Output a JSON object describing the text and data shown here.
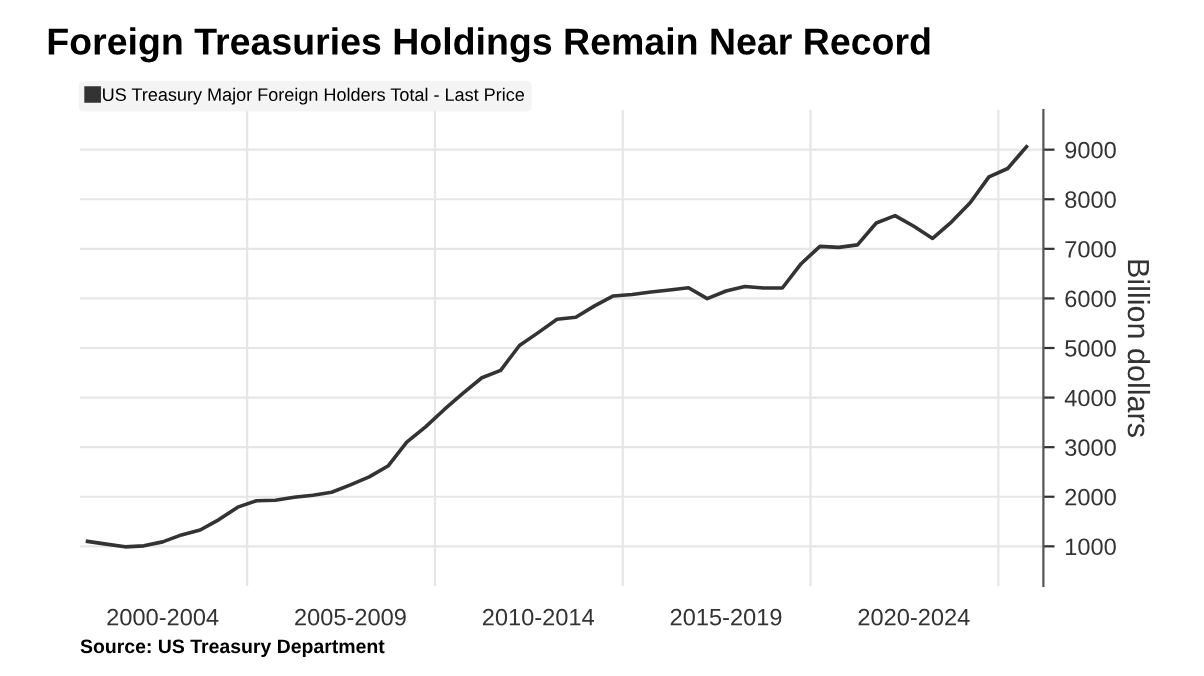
{
  "chart_data": {
    "type": "line",
    "title": "Foreign Treasuries Holdings Remain Near Record",
    "ylabel": "Billion dollars",
    "annotations": [
      "Source: US Treasury Department"
    ],
    "categories": [
      null,
      null,
      null,
      null,
      "2000-2004",
      null,
      null,
      null,
      null,
      null,
      null,
      null,
      null,
      null,
      "2005-2009",
      null,
      null,
      null,
      null,
      null,
      null,
      null,
      null,
      null,
      "2010-2014",
      null,
      null,
      null,
      null,
      null,
      null,
      null,
      null,
      null,
      "2015-2019",
      null,
      null,
      null,
      null,
      null,
      null,
      null,
      null,
      null,
      "2020-2024",
      null,
      null,
      null,
      null,
      null,
      null
    ],
    "series": [
      {
        "name": "US Treasury Major Foreign Holders Total - Last Price",
        "color": "#333333",
        "values": [
          1100,
          1045,
          990,
          1010,
          1090,
          1230,
          1330,
          1540,
          1790,
          1920,
          1930,
          1990,
          2030,
          2090,
          2240,
          2400,
          2620,
          3100,
          3410,
          3760,
          4090,
          4400,
          4550,
          5050,
          5310,
          5580,
          5620,
          5850,
          6050,
          6080,
          6130,
          6170,
          6215,
          5995,
          6150,
          6240,
          6210,
          6210,
          6700,
          7050,
          7030,
          7080,
          7520,
          7670,
          7455,
          7210,
          7540,
          7930,
          8450,
          8620,
          9060
        ]
      }
    ],
    "ylim": [
      200,
      9800
    ],
    "yticks": [
      1000,
      2000,
      3000,
      4000,
      5000,
      6000,
      7000,
      8000,
      9000
    ],
    "grid": true,
    "legend": "top left",
    "line_style": "solid",
    "marker": "none"
  }
}
